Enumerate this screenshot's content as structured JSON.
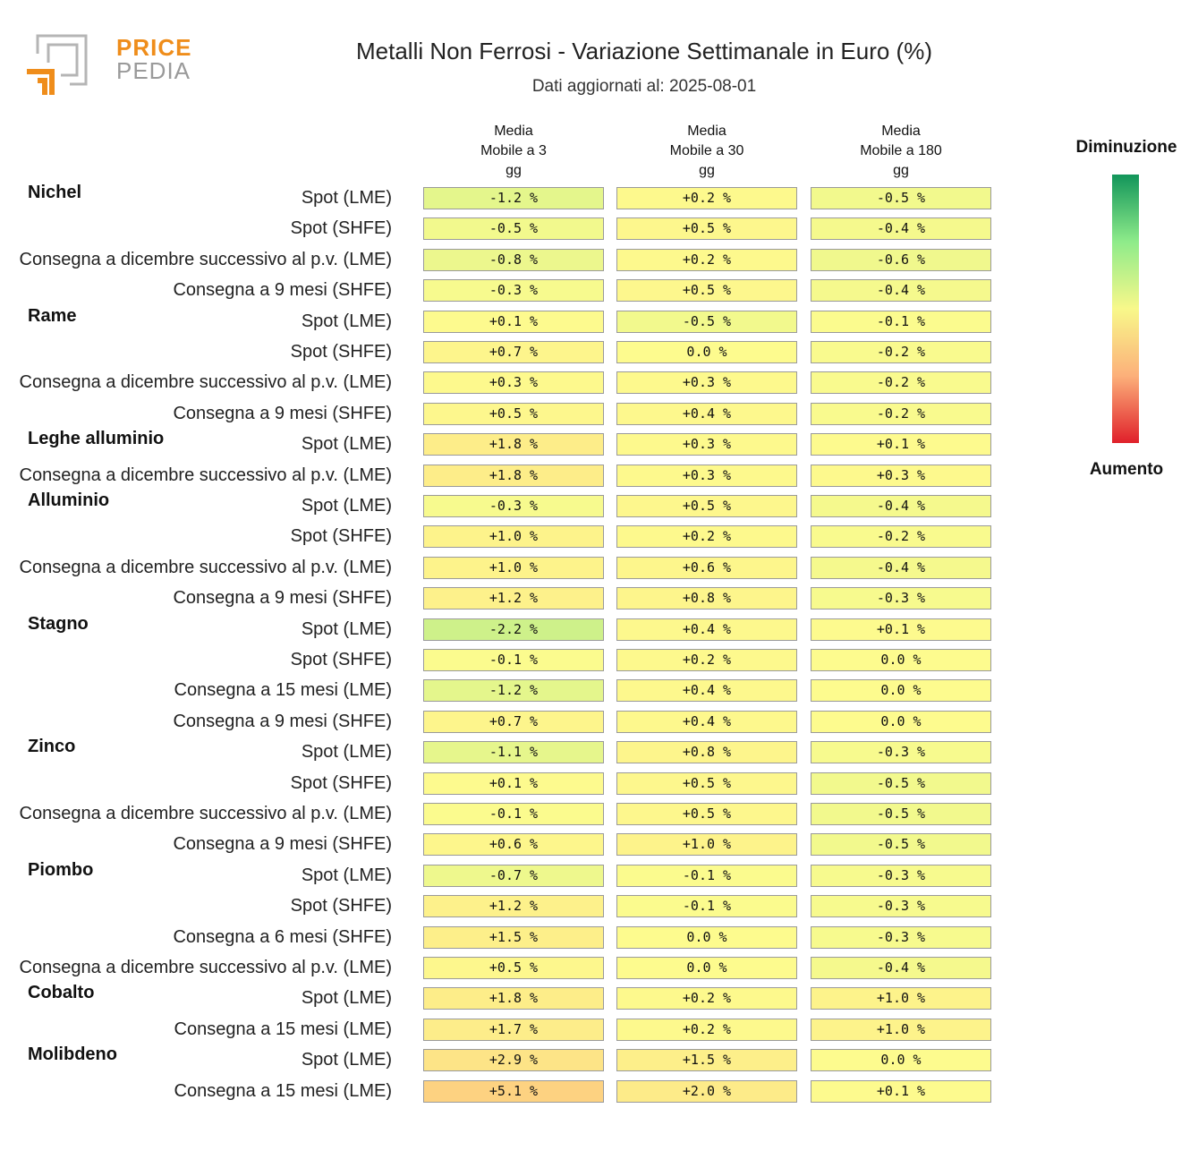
{
  "logo": {
    "word1": "PRICE",
    "word2": "PEDIA"
  },
  "title": "Metalli Non Ferrosi - Variazione Settimanale in Euro (%)",
  "subtitle": "Dati aggiornati al: 2025-08-01",
  "legend": {
    "top_label": "Diminuzione",
    "bottom_label": "Aumento",
    "colors": [
      "#12955a",
      "#8eeb8a",
      "#f8f88a",
      "#fcb07a",
      "#e0202a"
    ]
  },
  "chart_data": {
    "type": "table",
    "columns": [
      {
        "line1": "Media",
        "line2": "Mobile a 3",
        "line3": "gg"
      },
      {
        "line1": "Media",
        "line2": "Mobile a 30",
        "line3": "gg"
      },
      {
        "line1": "Media",
        "line2": "Mobile a 180",
        "line3": "gg"
      }
    ],
    "groups": [
      {
        "name": "Nichel",
        "rows": [
          {
            "label": "Spot (LME)",
            "values": [
              -1.2,
              0.2,
              -0.5
            ]
          },
          {
            "label": "Spot (SHFE)",
            "values": [
              -0.5,
              0.5,
              -0.4
            ]
          },
          {
            "label": "Consegna a dicembre successivo al p.v. (LME)",
            "values": [
              -0.8,
              0.2,
              -0.6
            ]
          },
          {
            "label": "Consegna a 9 mesi (SHFE)",
            "values": [
              -0.3,
              0.5,
              -0.4
            ]
          }
        ]
      },
      {
        "name": "Rame",
        "rows": [
          {
            "label": "Spot (LME)",
            "values": [
              0.1,
              -0.5,
              -0.1
            ]
          },
          {
            "label": "Spot (SHFE)",
            "values": [
              0.7,
              0.0,
              -0.2
            ]
          },
          {
            "label": "Consegna a dicembre successivo al p.v. (LME)",
            "values": [
              0.3,
              0.3,
              -0.2
            ]
          },
          {
            "label": "Consegna a 9 mesi (SHFE)",
            "values": [
              0.5,
              0.4,
              -0.2
            ]
          }
        ]
      },
      {
        "name": "Leghe alluminio",
        "rows": [
          {
            "label": "Spot (LME)",
            "values": [
              1.8,
              0.3,
              0.1
            ]
          },
          {
            "label": "Consegna a dicembre successivo al p.v. (LME)",
            "values": [
              1.8,
              0.3,
              0.3
            ]
          }
        ]
      },
      {
        "name": "Alluminio",
        "rows": [
          {
            "label": "Spot (LME)",
            "values": [
              -0.3,
              0.5,
              -0.4
            ]
          },
          {
            "label": "Spot (SHFE)",
            "values": [
              1.0,
              0.2,
              -0.2
            ]
          },
          {
            "label": "Consegna a dicembre successivo al p.v. (LME)",
            "values": [
              1.0,
              0.6,
              -0.4
            ]
          },
          {
            "label": "Consegna a 9 mesi (SHFE)",
            "values": [
              1.2,
              0.8,
              -0.3
            ]
          }
        ]
      },
      {
        "name": "Stagno",
        "rows": [
          {
            "label": "Spot (LME)",
            "values": [
              -2.2,
              0.4,
              0.1
            ]
          },
          {
            "label": "Spot (SHFE)",
            "values": [
              -0.1,
              0.2,
              0.0
            ]
          },
          {
            "label": "Consegna a 15 mesi (LME)",
            "values": [
              -1.2,
              0.4,
              0.0
            ]
          },
          {
            "label": "Consegna a 9 mesi (SHFE)",
            "values": [
              0.7,
              0.4,
              0.0
            ]
          }
        ]
      },
      {
        "name": "Zinco",
        "rows": [
          {
            "label": "Spot (LME)",
            "values": [
              -1.1,
              0.8,
              -0.3
            ]
          },
          {
            "label": "Spot (SHFE)",
            "values": [
              0.1,
              0.5,
              -0.5
            ]
          },
          {
            "label": "Consegna a dicembre successivo al p.v. (LME)",
            "values": [
              -0.1,
              0.5,
              -0.5
            ]
          },
          {
            "label": "Consegna a 9 mesi (SHFE)",
            "values": [
              0.6,
              1.0,
              -0.5
            ]
          }
        ]
      },
      {
        "name": "Piombo",
        "rows": [
          {
            "label": "Spot (LME)",
            "values": [
              -0.7,
              -0.1,
              -0.3
            ]
          },
          {
            "label": "Spot (SHFE)",
            "values": [
              1.2,
              -0.1,
              -0.3
            ]
          },
          {
            "label": "Consegna a 6 mesi (SHFE)",
            "values": [
              1.5,
              0.0,
              -0.3
            ]
          },
          {
            "label": "Consegna a dicembre successivo al p.v. (LME)",
            "values": [
              0.5,
              0.0,
              -0.4
            ]
          }
        ]
      },
      {
        "name": "Cobalto",
        "rows": [
          {
            "label": "Spot (LME)",
            "values": [
              1.8,
              0.2,
              1.0
            ]
          },
          {
            "label": "Consegna a 15 mesi (LME)",
            "values": [
              1.7,
              0.2,
              1.0
            ]
          }
        ]
      },
      {
        "name": "Molibdeno",
        "rows": [
          {
            "label": "Spot (LME)",
            "values": [
              2.9,
              1.5,
              0.0
            ]
          },
          {
            "label": "Consegna a 15 mesi (LME)",
            "values": [
              5.1,
              2.0,
              0.1
            ]
          }
        ]
      }
    ]
  }
}
